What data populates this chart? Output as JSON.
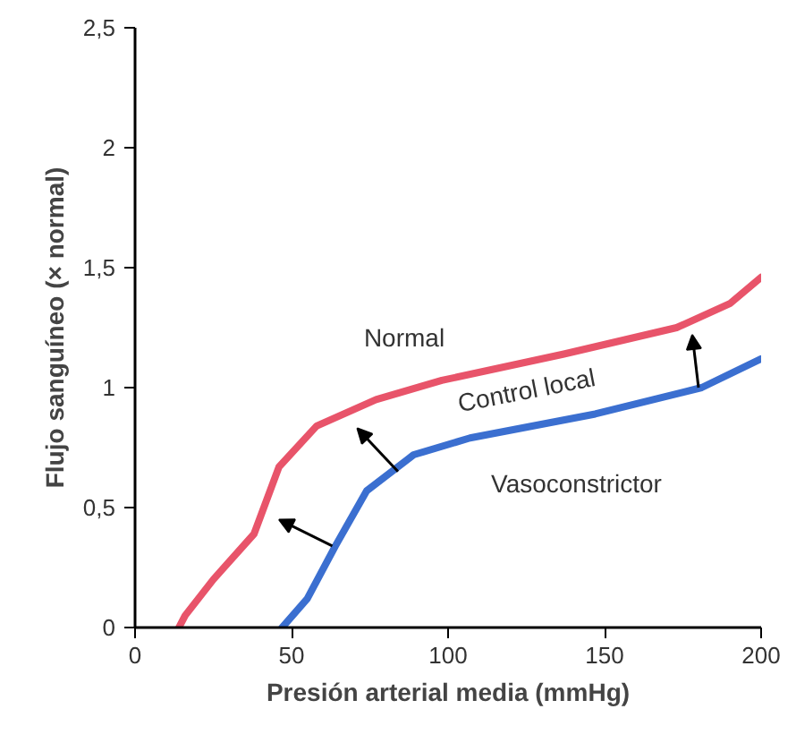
{
  "chart_data": {
    "type": "line",
    "xlabel": "Presión arterial media (mmHg)",
    "ylabel": "Flujo sanguíneo (× normal)",
    "xlim": [
      0,
      200
    ],
    "xticks": [
      0,
      50,
      100,
      150,
      200
    ],
    "ylim": [
      0,
      2.5
    ],
    "yticks": [
      0,
      {
        "value": 0.5,
        "label": "0,5"
      },
      1,
      {
        "value": 1.5,
        "label": "1,5"
      },
      2,
      {
        "value": 2.5,
        "label": "2,5"
      }
    ],
    "grid": false,
    "legend": false,
    "marker": "none",
    "line_style": "solid",
    "series": [
      {
        "name": "Normal",
        "color": "#e8546a",
        "x": [
          14,
          16,
          25,
          38,
          46,
          58,
          77,
          98,
          137,
          173,
          190,
          200
        ],
        "values": [
          0,
          0.05,
          0.2,
          0.39,
          0.67,
          0.84,
          0.95,
          1.03,
          1.14,
          1.25,
          1.35,
          1.46
        ]
      },
      {
        "name": "Vasoconstrictor",
        "color": "#3b6fd0",
        "x": [
          47,
          55,
          64,
          74,
          89,
          107,
          147,
          181,
          200
        ],
        "values": [
          0,
          0.12,
          0.34,
          0.57,
          0.72,
          0.79,
          0.89,
          1.0,
          1.12
        ]
      }
    ],
    "annotations": [
      "Control local"
    ]
  }
}
